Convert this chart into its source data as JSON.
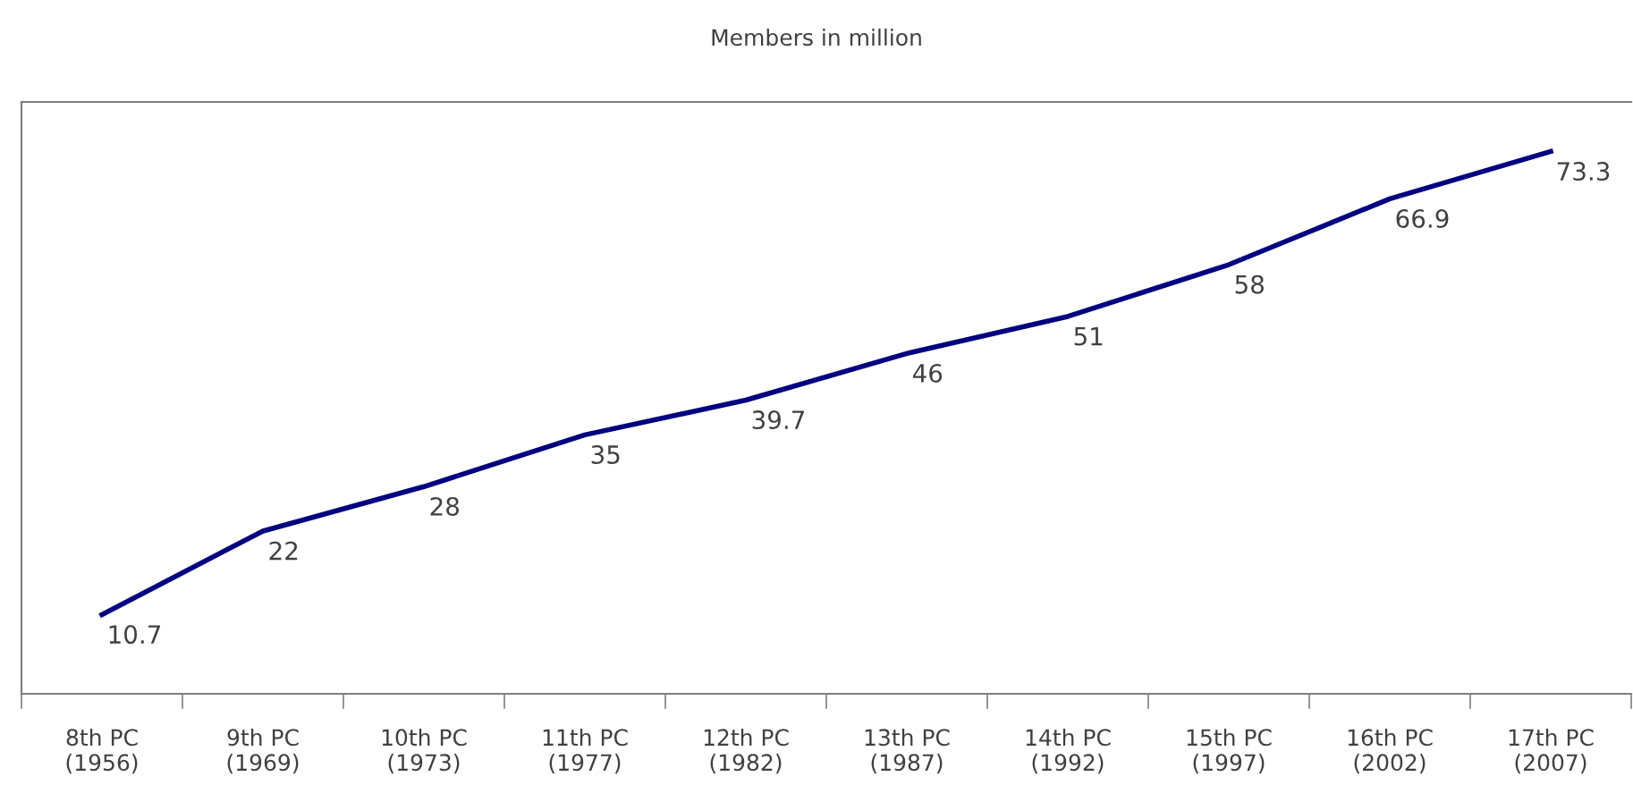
{
  "chart_data": {
    "type": "line",
    "title": "Members in million",
    "categories": [
      "8th PC\n(1956)",
      "9th PC\n(1969)",
      "10th PC\n(1973)",
      "11th PC\n(1977)",
      "12th PC\n(1982)",
      "13th PC\n(1987)",
      "14th PC\n(1992)",
      "15th PC\n(1997)",
      "16th PC\n(2002)",
      "17th PC\n(2007)"
    ],
    "series": [
      {
        "color": "#000080",
        "values": [
          10.7,
          22,
          28,
          35,
          39.7,
          46,
          51,
          58,
          66.9,
          73.3
        ]
      }
    ],
    "ylim": [
      0,
      80
    ],
    "tick_labels": "x",
    "data_labels": true,
    "grid": false,
    "legend": false,
    "marker": "none",
    "line_style": "solid"
  }
}
